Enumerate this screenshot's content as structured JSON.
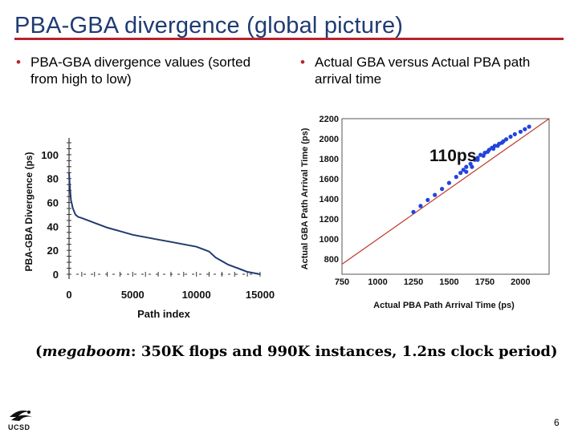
{
  "slide": {
    "title": "PBA-GBA divergence (global picture)",
    "bullet_left_marker": "•",
    "bullet_left": "PBA-GBA divergence values (sorted from high to low)",
    "bullet_right_marker": "•",
    "bullet_right": "Actual GBA versus Actual PBA path arrival time",
    "caption_open": "(",
    "caption_italic": "megaboom",
    "caption_rest": ": 350K flops and 990K instances, 1.2ns clock period)",
    "page_number": "6",
    "logo_text": "UCSD",
    "accent_color": "#b8222d",
    "title_color": "#1f3b73"
  },
  "chart_data": [
    {
      "type": "line",
      "title": "",
      "xlabel": "Path index",
      "ylabel": "PBA-GBA Divergence (ps)",
      "xlim": [
        0,
        15000
      ],
      "ylim": [
        0,
        110
      ],
      "x_ticks": [
        "0",
        "5000",
        "10000",
        "15000"
      ],
      "y_ticks": [
        "0",
        "20",
        "40",
        "60",
        "80",
        "100"
      ],
      "series": [
        {
          "name": "divergence",
          "color": "#1f3b6e",
          "x": [
            0,
            50,
            150,
            300,
            500,
            700,
            1000,
            1500,
            2000,
            2500,
            3000,
            4000,
            5000,
            6000,
            7000,
            8000,
            9000,
            10000,
            11000,
            11500,
            12000,
            12500,
            13000,
            13500,
            14000,
            14500,
            15000
          ],
          "y": [
            85,
            75,
            62,
            55,
            50,
            48,
            47,
            45,
            43,
            41,
            39,
            36,
            33,
            31,
            29,
            27,
            25,
            23,
            19,
            14,
            11,
            8,
            6,
            4,
            2,
            1,
            0
          ]
        }
      ]
    },
    {
      "type": "scatter",
      "title": "",
      "annotation": "110ps",
      "xlabel": "Actual PBA Path Arrival Time (ps)",
      "ylabel": "Actual GBA Path Arrival Time (ps)",
      "xlim": [
        750,
        2200
      ],
      "ylim": [
        650,
        2200
      ],
      "x_ticks": [
        "750",
        "1000",
        "1250",
        "1500",
        "1750",
        "2000"
      ],
      "y_ticks": [
        "800",
        "1000",
        "1200",
        "1400",
        "1600",
        "1800",
        "2000",
        "2200"
      ],
      "reference_line": {
        "from": [
          750,
          750
        ],
        "to": [
          2200,
          2200
        ],
        "color": "#c0392b"
      },
      "series": [
        {
          "name": "paths",
          "color": "#2244dd",
          "x": [
            1250,
            1300,
            1350,
            1400,
            1450,
            1500,
            1550,
            1580,
            1600,
            1620,
            1650,
            1680,
            1700,
            1720,
            1750,
            1780,
            1800,
            1820,
            1850,
            1880,
            1900,
            1930,
            1960,
            2000,
            2030,
            2060,
            1620,
            1660,
            1700,
            1740,
            1770,
            1810,
            1840,
            1870
          ],
          "y": [
            1270,
            1330,
            1390,
            1440,
            1500,
            1560,
            1620,
            1660,
            1690,
            1720,
            1750,
            1790,
            1810,
            1840,
            1860,
            1890,
            1910,
            1930,
            1950,
            1975,
            1995,
            2020,
            2045,
            2070,
            2095,
            2120,
            1670,
            1720,
            1790,
            1830,
            1870,
            1900,
            1930,
            1960
          ]
        }
      ]
    }
  ]
}
